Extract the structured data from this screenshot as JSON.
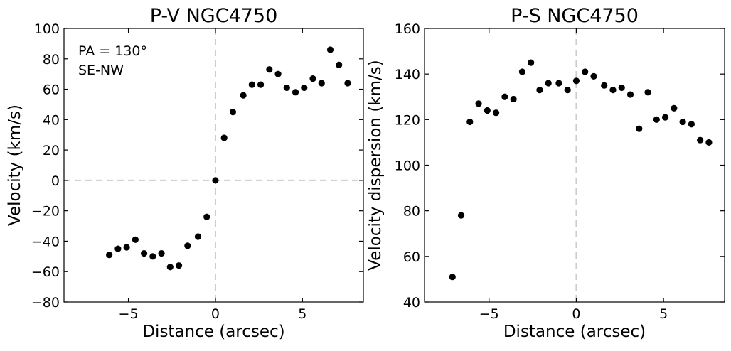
{
  "chart_data": [
    {
      "type": "scatter",
      "title": "P-V NGC4750",
      "xlabel": "Distance (arcsec)",
      "ylabel": "Velocity (km/s)",
      "xlim": [
        -8.7,
        8.5
      ],
      "ylim": [
        -80,
        100
      ],
      "xticks": [
        -5,
        0,
        5
      ],
      "yticks": [
        -80,
        -60,
        -40,
        -20,
        0,
        20,
        40,
        60,
        80,
        100
      ],
      "annotation": [
        "PA = 130$^\\circ$",
        "SE-NW"
      ],
      "grid": false,
      "reference_lines": {
        "x": 0,
        "y": 0,
        "style": "dashed",
        "color": "#cccccc"
      },
      "marker_color": "#000000",
      "x": [
        -6.1,
        -5.6,
        -5.1,
        -4.6,
        -4.1,
        -3.6,
        -3.1,
        -2.6,
        -2.1,
        -1.6,
        -1.0,
        -0.5,
        0.0,
        0.5,
        1.0,
        1.6,
        2.1,
        2.6,
        3.1,
        3.6,
        4.1,
        4.6,
        5.1,
        5.6,
        6.1,
        6.6,
        7.1,
        7.6
      ],
      "y": [
        -49,
        -45,
        -44,
        -39,
        -48,
        -50,
        -48,
        -57,
        -56,
        -43,
        -37,
        -24,
        0,
        28,
        45,
        56,
        63,
        63,
        73,
        70,
        61,
        58,
        61,
        67,
        64,
        86,
        76,
        64
      ]
    },
    {
      "type": "scatter",
      "title": "P-S NGC4750",
      "xlabel": "Distance (arcsec)",
      "ylabel": "Velocity dispersion (km/s)",
      "xlim": [
        -8.7,
        8.5
      ],
      "ylim": [
        40,
        160
      ],
      "xticks": [
        -5,
        0,
        5
      ],
      "yticks": [
        40,
        60,
        80,
        100,
        120,
        140,
        160
      ],
      "grid": false,
      "reference_lines": {
        "x": 0,
        "style": "dashed",
        "color": "#cccccc"
      },
      "marker_color": "#000000",
      "x": [
        -7.1,
        -6.6,
        -6.1,
        -5.6,
        -5.1,
        -4.6,
        -4.1,
        -3.6,
        -3.1,
        -2.6,
        -2.1,
        -1.6,
        -1.0,
        -0.5,
        0.0,
        0.5,
        1.0,
        1.6,
        2.1,
        2.6,
        3.1,
        3.6,
        4.1,
        4.6,
        5.1,
        5.6,
        6.1,
        6.6,
        7.1,
        7.6
      ],
      "y": [
        51,
        78,
        119,
        127,
        124,
        123,
        130,
        129,
        141,
        145,
        133,
        136,
        136,
        133,
        137,
        141,
        139,
        135,
        133,
        134,
        131,
        116,
        132,
        120,
        121,
        125,
        119,
        118,
        111,
        110
      ]
    }
  ]
}
